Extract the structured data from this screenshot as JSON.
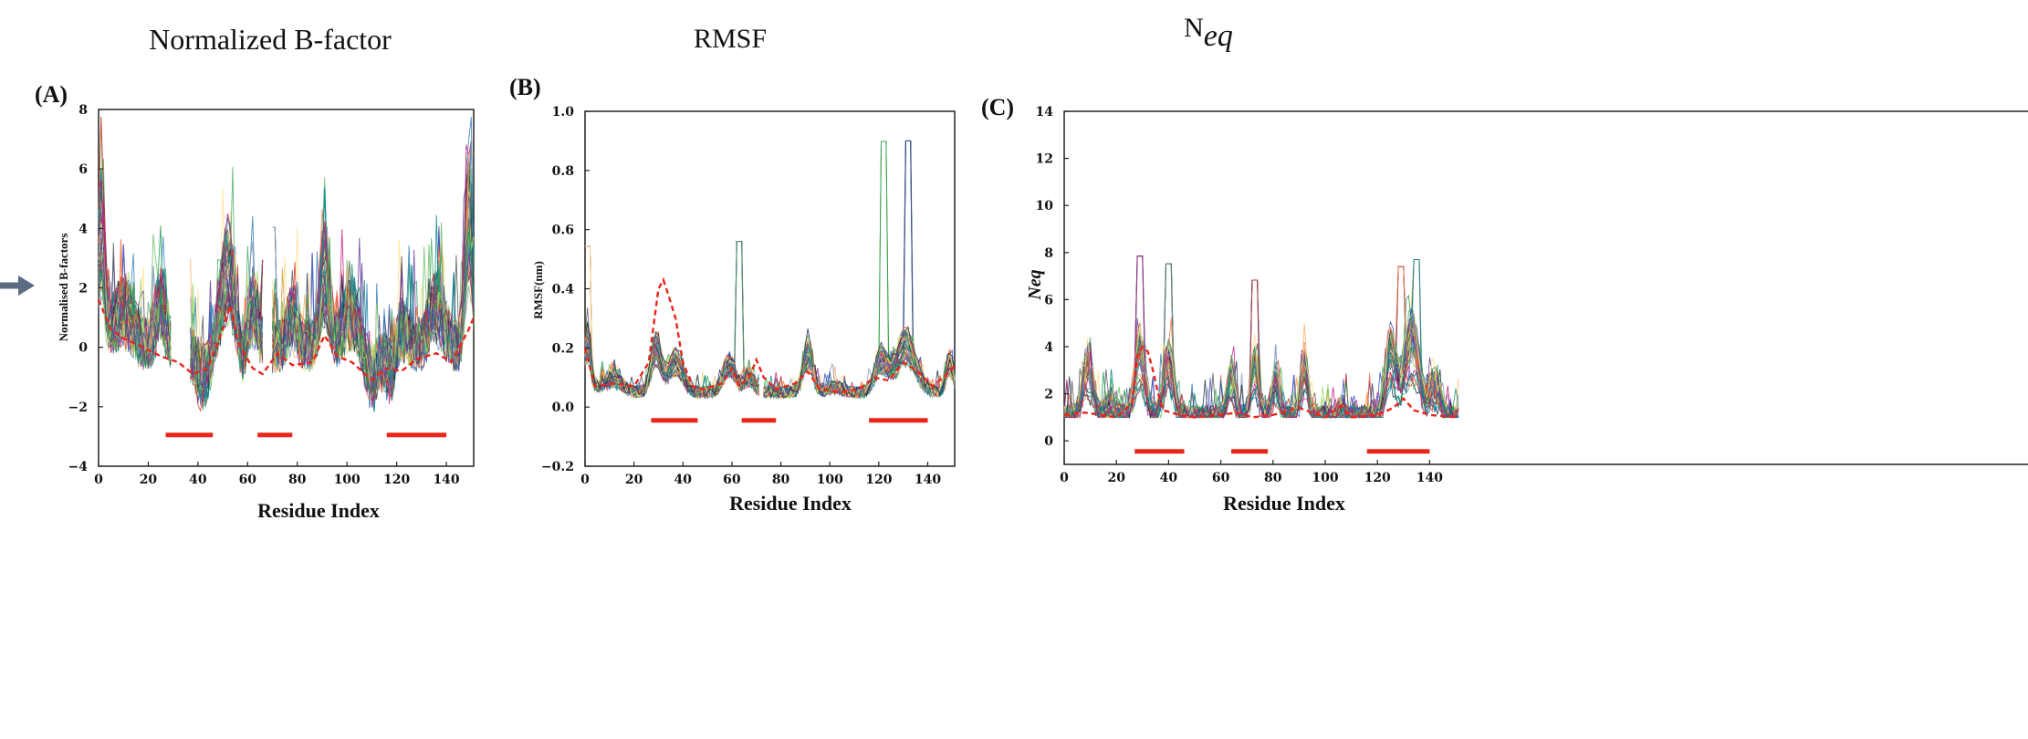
{
  "figure": {
    "arrow_color": "#5b6b82",
    "colors": {
      "mean_line": "#e8261a",
      "segment": "#e8261a",
      "frame": "#222222"
    },
    "series_palette": [
      "#3b4cc0",
      "#2c7bb6",
      "#1a9850",
      "#66bd63",
      "#a6d96a",
      "#fee08b",
      "#fdae61",
      "#f46d43",
      "#d73027",
      "#5e3c99",
      "#008080",
      "#555555",
      "#1b2a49",
      "#8c96c6",
      "#41ab5d",
      "#c51b7d"
    ]
  },
  "chart_data": [
    {
      "id": "A",
      "type": "line",
      "panel_title": "Normalized B-factor",
      "panel_letter": "(A)",
      "xlabel": "Residue Index",
      "ylabel": "Normalised B-factors",
      "xlim": [
        0,
        151
      ],
      "ylim": [
        -4,
        8
      ],
      "xticks": [
        0,
        20,
        40,
        60,
        80,
        100,
        120,
        140
      ],
      "yticks": [
        -4,
        -2,
        0,
        2,
        4,
        6,
        8
      ],
      "ytick_labels": [
        "−4",
        "−2",
        "0",
        "2",
        "4",
        "6",
        "8"
      ],
      "grid": false,
      "gaps": [
        [
          29,
          37
        ],
        [
          66,
          70
        ]
      ],
      "baseline": 0.0,
      "noise": 0.9,
      "peaks": [
        [
          1,
          4.0,
          1.5
        ],
        [
          10,
          1.2,
          4
        ],
        [
          25,
          1.5,
          2
        ],
        [
          52,
          2.6,
          3
        ],
        [
          62,
          1.5,
          2
        ],
        [
          78,
          1.0,
          2
        ],
        [
          91,
          2.5,
          2
        ],
        [
          102,
          1.2,
          3
        ],
        [
          120,
          1.0,
          3
        ],
        [
          136,
          1.4,
          3
        ],
        [
          149,
          4.5,
          1.5
        ]
      ],
      "dips": [
        [
          42,
          -1.0,
          3
        ],
        [
          58,
          -0.8,
          2
        ],
        [
          110,
          -1.0,
          3
        ],
        [
          118,
          -1.5,
          2
        ]
      ],
      "extreme": [
        [
          151,
          7.0
        ],
        [
          150,
          6.5
        ],
        [
          70,
          4.1
        ],
        [
          67,
          3.0
        ]
      ],
      "mean_trace": [
        [
          0,
          1.6
        ],
        [
          5,
          0.6
        ],
        [
          10,
          0.3
        ],
        [
          18,
          0.0
        ],
        [
          25,
          -0.3
        ],
        [
          32,
          -0.5
        ],
        [
          38,
          -0.9
        ],
        [
          44,
          -0.7
        ],
        [
          50,
          0.6
        ],
        [
          53,
          1.4
        ],
        [
          56,
          0.2
        ],
        [
          62,
          -0.7
        ],
        [
          66,
          -0.9
        ],
        [
          72,
          -0.2
        ],
        [
          78,
          -0.6
        ],
        [
          86,
          -0.5
        ],
        [
          91,
          0.4
        ],
        [
          96,
          -0.3
        ],
        [
          102,
          -0.5
        ],
        [
          110,
          -1.1
        ],
        [
          116,
          -0.7
        ],
        [
          122,
          -0.8
        ],
        [
          128,
          -0.4
        ],
        [
          136,
          -0.2
        ],
        [
          142,
          -0.5
        ],
        [
          149,
          0.6
        ],
        [
          151,
          1.0
        ]
      ],
      "segments": [
        [
          27,
          46,
          -2.95
        ],
        [
          64,
          78,
          -2.95
        ],
        [
          116,
          140,
          -2.95
        ]
      ]
    },
    {
      "id": "B",
      "type": "line",
      "panel_title": "RMSF",
      "panel_letter": "(B)",
      "xlabel": "Residue Index",
      "ylabel": "RMSF(nm)",
      "xlim": [
        0,
        151
      ],
      "ylim": [
        -0.2,
        1.0
      ],
      "xticks": [
        0,
        20,
        40,
        60,
        80,
        100,
        120,
        140
      ],
      "yticks": [
        -0.2,
        0.0,
        0.2,
        0.4,
        0.6,
        0.8,
        1.0
      ],
      "ytick_labels": [
        "−0.2",
        "0.0",
        "0.2",
        "0.4",
        "0.6",
        "0.8",
        "1.0"
      ],
      "grid": false,
      "gaps": [
        [
          71,
          73
        ]
      ],
      "baseline": 0.05,
      "noise": 0.02,
      "peaks": [
        [
          1,
          0.2,
          1.5
        ],
        [
          11,
          0.05,
          4
        ],
        [
          29,
          0.17,
          2
        ],
        [
          37,
          0.12,
          3
        ],
        [
          59,
          0.11,
          2.5
        ],
        [
          67,
          0.06,
          2
        ],
        [
          91,
          0.15,
          2
        ],
        [
          102,
          0.02,
          3
        ],
        [
          121,
          0.12,
          2.5
        ],
        [
          131,
          0.18,
          4
        ],
        [
          149,
          0.12,
          1.5
        ]
      ],
      "dips": [],
      "extreme": [
        [
          122,
          0.91
        ],
        [
          132,
          0.9
        ],
        [
          63,
          0.56
        ],
        [
          1,
          0.55
        ]
      ],
      "mean_trace": [
        [
          0,
          0.2
        ],
        [
          4,
          0.07
        ],
        [
          12,
          0.08
        ],
        [
          20,
          0.07
        ],
        [
          26,
          0.15
        ],
        [
          30,
          0.4
        ],
        [
          32,
          0.43
        ],
        [
          34,
          0.38
        ],
        [
          37,
          0.3
        ],
        [
          40,
          0.15
        ],
        [
          44,
          0.07
        ],
        [
          48,
          0.06
        ],
        [
          56,
          0.08
        ],
        [
          60,
          0.13
        ],
        [
          63,
          0.07
        ],
        [
          67,
          0.1
        ],
        [
          70,
          0.16
        ],
        [
          73,
          0.1
        ],
        [
          78,
          0.06
        ],
        [
          86,
          0.08
        ],
        [
          91,
          0.12
        ],
        [
          96,
          0.06
        ],
        [
          104,
          0.05
        ],
        [
          112,
          0.06
        ],
        [
          118,
          0.1
        ],
        [
          124,
          0.09
        ],
        [
          130,
          0.15
        ],
        [
          136,
          0.12
        ],
        [
          142,
          0.07
        ],
        [
          149,
          0.12
        ],
        [
          151,
          0.14
        ]
      ],
      "segments": [
        [
          27,
          46,
          -0.045
        ],
        [
          64,
          78,
          -0.045
        ],
        [
          116,
          140,
          -0.045
        ]
      ]
    },
    {
      "id": "C",
      "type": "line",
      "panel_title": "N",
      "panel_title_sub": "eq",
      "panel_letter": "(C)",
      "xlabel": "Residue Index",
      "ylabel": "Neq",
      "xlim": [
        0,
        151
      ],
      "ylim": [
        -1,
        14
      ],
      "xticks": [
        0,
        20,
        40,
        60,
        80,
        100,
        120,
        140
      ],
      "yticks": [
        0,
        2,
        4,
        6,
        8,
        10,
        12,
        14
      ],
      "ytick_labels": [
        "0",
        "2",
        "4",
        "6",
        "8",
        "10",
        "12",
        "14"
      ],
      "grid": false,
      "gaps": [],
      "baseline": 1.0,
      "noise": 0.5,
      "floor": 1.0,
      "peaks": [
        [
          9,
          2.0,
          2
        ],
        [
          18,
          0.6,
          2
        ],
        [
          29,
          2.5,
          2
        ],
        [
          40,
          2.2,
          2
        ],
        [
          64,
          1.6,
          1.5
        ],
        [
          73,
          2.0,
          1.5
        ],
        [
          81,
          1.4,
          1.5
        ],
        [
          92,
          2.0,
          1.5
        ],
        [
          106,
          0.4,
          1
        ],
        [
          125,
          2.5,
          2
        ],
        [
          133,
          3.0,
          3
        ],
        [
          142,
          1.2,
          2
        ]
      ],
      "dips": [],
      "extreme": [
        [
          135,
          7.7
        ],
        [
          129,
          7.4
        ],
        [
          29,
          8.0
        ],
        [
          40,
          7.6
        ],
        [
          73,
          6.9
        ]
      ],
      "mean_trace": [
        [
          0,
          1.1
        ],
        [
          8,
          1.2
        ],
        [
          20,
          1.0
        ],
        [
          26,
          1.6
        ],
        [
          28,
          3.6
        ],
        [
          30,
          4.0
        ],
        [
          32,
          3.8
        ],
        [
          34,
          3.0
        ],
        [
          36,
          2.0
        ],
        [
          38,
          1.3
        ],
        [
          44,
          1.1
        ],
        [
          50,
          1.0
        ],
        [
          60,
          1.1
        ],
        [
          66,
          1.2
        ],
        [
          72,
          1.0
        ],
        [
          80,
          1.1
        ],
        [
          90,
          1.4
        ],
        [
          100,
          1.0
        ],
        [
          106,
          1.5
        ],
        [
          110,
          1.0
        ],
        [
          120,
          1.1
        ],
        [
          126,
          1.4
        ],
        [
          130,
          1.8
        ],
        [
          134,
          1.3
        ],
        [
          140,
          1.1
        ],
        [
          151,
          1.0
        ]
      ],
      "segments": [
        [
          27,
          46,
          -0.45
        ],
        [
          64,
          78,
          -0.45
        ],
        [
          116,
          140,
          -0.45
        ]
      ]
    }
  ]
}
